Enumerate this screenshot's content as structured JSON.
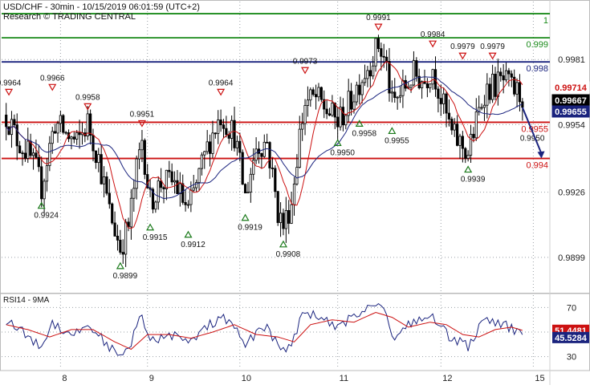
{
  "header": {
    "title": "USD/CHF - 30min - 10/15/2019 06:01:59 (UTC+2)",
    "subtitle": "Research © TRADING CENTRAL"
  },
  "colors": {
    "candle": "#000000",
    "resistance_green": "#1a8a1a",
    "pivot_blue": "#1a237e",
    "support_red": "#cc1111",
    "ma_fast": "#cc1111",
    "ma_slow": "#1a237e",
    "rsi_line": "#1a237e",
    "rsi_ma": "#cc1111",
    "forecast_arrow": "#1a237e",
    "marker_up": "#1a7a1a",
    "marker_down": "#cc1111",
    "grid": "#9aa0a6"
  },
  "chart_data": [
    {
      "type": "candlestick",
      "symbol": "USD/CHF",
      "timeframe": "30min",
      "ylim": [
        0.9885,
        1.0005
      ],
      "y_ticks": [
        "0.9981",
        "0.9954",
        "0.9926",
        "0.9899"
      ],
      "x_day_labels": [
        "8",
        "9",
        "10",
        "11",
        "12",
        "15"
      ],
      "levels": [
        {
          "label": "1",
          "value": 1.0,
          "color": "green"
        },
        {
          "label": "0.999",
          "value": 0.999,
          "color": "green"
        },
        {
          "label": "0.998",
          "value": 0.998,
          "color": "blue"
        },
        {
          "label": "0.9955",
          "value": 0.9955,
          "color": "red"
        },
        {
          "label": "0.994",
          "value": 0.994,
          "color": "red"
        }
      ],
      "price_badges": [
        {
          "label": "0.99714",
          "bg": "#ffffff",
          "fg": "#cc1111",
          "value": 0.99714
        },
        {
          "label": "0.99667",
          "bg": "#000000",
          "fg": "#ffffff",
          "value": 0.99667
        },
        {
          "label": "0.99655",
          "bg": "#1a237e",
          "fg": "#ffffff",
          "value": 0.99655
        }
      ],
      "swing_labels": [
        {
          "text": "0.9964",
          "kind": "high",
          "x_index": 1
        },
        {
          "text": "0.9924",
          "kind": "low",
          "x_index": 13
        },
        {
          "text": "0.9966",
          "kind": "high",
          "x_index": 17
        },
        {
          "text": "0.9958",
          "kind": "high",
          "x_index": 30
        },
        {
          "text": "0.9899",
          "kind": "low",
          "x_index": 42
        },
        {
          "text": "0.9951",
          "kind": "high",
          "x_index": 50
        },
        {
          "text": "0.9915",
          "kind": "low",
          "x_index": 53
        },
        {
          "text": "0.9912",
          "kind": "low",
          "x_index": 67
        },
        {
          "text": "0.9964",
          "kind": "high",
          "x_index": 79
        },
        {
          "text": "0.9919",
          "kind": "low",
          "x_index": 88
        },
        {
          "text": "0.9908",
          "kind": "low",
          "x_index": 102
        },
        {
          "text": "0.9973",
          "kind": "high",
          "x_index": 110
        },
        {
          "text": "0.9950",
          "kind": "low",
          "x_index": 122
        },
        {
          "text": "0.9958",
          "kind": "low",
          "x_index": 130
        },
        {
          "text": "0.9991",
          "kind": "high",
          "x_index": 137
        },
        {
          "text": "0.9955",
          "kind": "low",
          "x_index": 142
        },
        {
          "text": "0.9984",
          "kind": "high",
          "x_index": 157
        },
        {
          "text": "0.9979",
          "kind": "high",
          "x_index": 168
        },
        {
          "text": "0.9939",
          "kind": "low",
          "x_index": 170
        },
        {
          "text": "0.9979",
          "kind": "high",
          "x_index": 179
        },
        {
          "text": "0.9950",
          "kind": "forecast",
          "x_index": 196
        }
      ],
      "forecast_target": 0.994,
      "price_anchors": [
        [
          0,
          0.9958
        ],
        [
          4,
          0.9948
        ],
        [
          8,
          0.9942
        ],
        [
          11,
          0.9935
        ],
        [
          13,
          0.9928
        ],
        [
          16,
          0.9945
        ],
        [
          18,
          0.9955
        ],
        [
          22,
          0.995
        ],
        [
          26,
          0.9946
        ],
        [
          30,
          0.9955
        ],
        [
          34,
          0.994
        ],
        [
          38,
          0.9918
        ],
        [
          42,
          0.9903
        ],
        [
          45,
          0.9912
        ],
        [
          48,
          0.9935
        ],
        [
          50,
          0.9948
        ],
        [
          53,
          0.9922
        ],
        [
          57,
          0.993
        ],
        [
          62,
          0.993
        ],
        [
          67,
          0.9918
        ],
        [
          71,
          0.9933
        ],
        [
          75,
          0.9948
        ],
        [
          79,
          0.9958
        ],
        [
          84,
          0.995
        ],
        [
          88,
          0.9924
        ],
        [
          92,
          0.9945
        ],
        [
          96,
          0.9947
        ],
        [
          100,
          0.9918
        ],
        [
          102,
          0.9912
        ],
        [
          105,
          0.9922
        ],
        [
          108,
          0.995
        ],
        [
          110,
          0.9963
        ],
        [
          114,
          0.9965
        ],
        [
          118,
          0.996
        ],
        [
          122,
          0.9955
        ],
        [
          126,
          0.9962
        ],
        [
          130,
          0.9972
        ],
        [
          134,
          0.998
        ],
        [
          137,
          0.9987
        ],
        [
          140,
          0.9978
        ],
        [
          142,
          0.9962
        ],
        [
          146,
          0.9968
        ],
        [
          150,
          0.9975
        ],
        [
          154,
          0.9972
        ],
        [
          157,
          0.9978
        ],
        [
          160,
          0.9965
        ],
        [
          164,
          0.995
        ],
        [
          168,
          0.9945
        ],
        [
          170,
          0.9942
        ],
        [
          173,
          0.9955
        ],
        [
          176,
          0.9968
        ],
        [
          179,
          0.997
        ],
        [
          183,
          0.9972
        ],
        [
          187,
          0.9968
        ],
        [
          190,
          0.9966
        ]
      ]
    },
    {
      "type": "line",
      "title": "RSI14 - 9MA",
      "ylim": [
        20,
        80
      ],
      "y_ticks": [
        "70",
        "50",
        "30"
      ],
      "reference_lines": [
        70,
        50,
        30
      ],
      "badges": [
        {
          "label": "51.4481",
          "bg": "#cc1111",
          "fg": "#ffffff",
          "value": 51.4481
        },
        {
          "label": "45.5284",
          "bg": "#1a237e",
          "fg": "#ffffff",
          "value": 45.5284
        }
      ],
      "series": [
        {
          "name": "RSI14",
          "anchors": [
            [
              0,
              60
            ],
            [
              5,
              52
            ],
            [
              9,
              44
            ],
            [
              13,
              38
            ],
            [
              17,
              58
            ],
            [
              21,
              52
            ],
            [
              25,
              48
            ],
            [
              30,
              56
            ],
            [
              34,
              48
            ],
            [
              38,
              38
            ],
            [
              42,
              28
            ],
            [
              45,
              36
            ],
            [
              48,
              55
            ],
            [
              50,
              62
            ],
            [
              53,
              42
            ],
            [
              57,
              46
            ],
            [
              62,
              48
            ],
            [
              67,
              40
            ],
            [
              71,
              48
            ],
            [
              75,
              56
            ],
            [
              79,
              62
            ],
            [
              84,
              54
            ],
            [
              88,
              38
            ],
            [
              92,
              50
            ],
            [
              96,
              55
            ],
            [
              100,
              38
            ],
            [
              102,
              34
            ],
            [
              105,
              42
            ],
            [
              108,
              58
            ],
            [
              110,
              66
            ],
            [
              114,
              64
            ],
            [
              118,
              58
            ],
            [
              122,
              52
            ],
            [
              126,
              60
            ],
            [
              130,
              66
            ],
            [
              134,
              72
            ],
            [
              137,
              74
            ],
            [
              140,
              64
            ],
            [
              142,
              46
            ],
            [
              146,
              52
            ],
            [
              150,
              60
            ],
            [
              154,
              58
            ],
            [
              157,
              64
            ],
            [
              160,
              54
            ],
            [
              164,
              44
            ],
            [
              168,
              42
            ],
            [
              170,
              38
            ],
            [
              173,
              50
            ],
            [
              176,
              58
            ],
            [
              179,
              58
            ],
            [
              183,
              56
            ],
            [
              187,
              52
            ],
            [
              190,
              45.5
            ]
          ]
        },
        {
          "name": "9MA",
          "anchors": [
            [
              0,
              56
            ],
            [
              8,
              52
            ],
            [
              16,
              46
            ],
            [
              24,
              52
            ],
            [
              32,
              52
            ],
            [
              40,
              42
            ],
            [
              46,
              36
            ],
            [
              52,
              48
            ],
            [
              60,
              48
            ],
            [
              68,
              45
            ],
            [
              76,
              50
            ],
            [
              84,
              56
            ],
            [
              92,
              48
            ],
            [
              100,
              46
            ],
            [
              106,
              42
            ],
            [
              112,
              56
            ],
            [
              120,
              60
            ],
            [
              128,
              58
            ],
            [
              136,
              66
            ],
            [
              142,
              62
            ],
            [
              148,
              54
            ],
            [
              156,
              58
            ],
            [
              162,
              56
            ],
            [
              168,
              48
            ],
            [
              174,
              46
            ],
            [
              180,
              52
            ],
            [
              186,
              54
            ],
            [
              190,
              51.4
            ]
          ]
        }
      ]
    }
  ]
}
